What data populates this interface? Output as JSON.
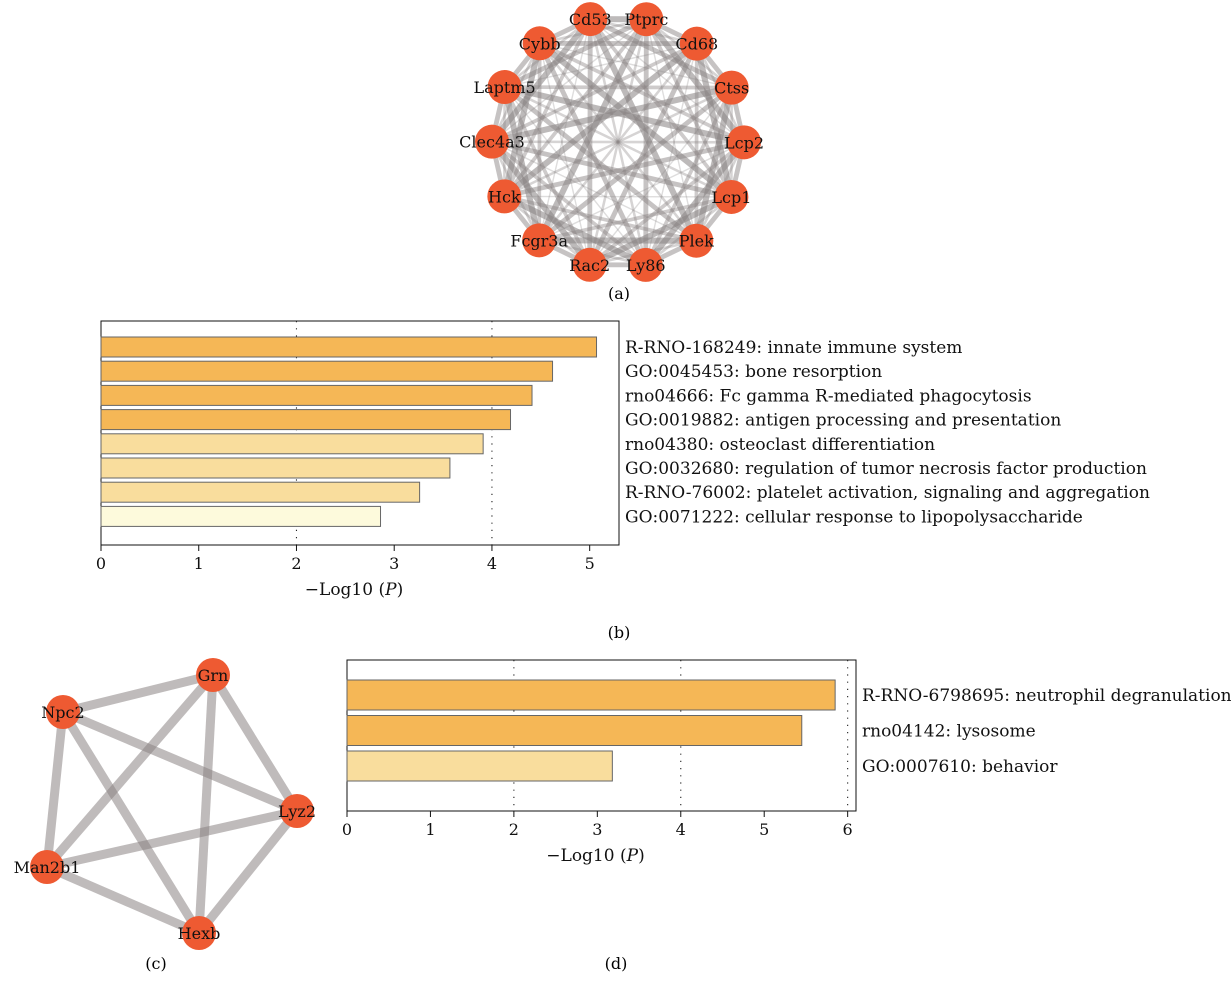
{
  "panels": {
    "a": {
      "label": "(a)"
    },
    "b": {
      "label": "(b)"
    },
    "c": {
      "label": "(c)"
    },
    "d": {
      "label": "(d)"
    }
  },
  "colors": {
    "node": "#ee5a32",
    "edge": "#8a8484",
    "bar_dark": "#f5b756",
    "bar_medium": "#f9dd9d",
    "bar_light": "#fdfadc",
    "bar_stroke": "#666666"
  },
  "chart_data": [
    {
      "panel": "a",
      "type": "network",
      "layout": "circle",
      "nodes": [
        "Ptprc",
        "Cd68",
        "Ctss",
        "Lcp2",
        "Lcp1",
        "Plek",
        "Ly86",
        "Rac2",
        "Fcgr3a",
        "Hck",
        "Clec4a3",
        "Laptm5",
        "Cybb",
        "Cd53"
      ],
      "edges": "dense (near-complete) interaction graph among all 14 genes"
    },
    {
      "panel": "b",
      "type": "bar",
      "orientation": "horizontal",
      "categories": [
        "R-RNO-168249: innate immune system",
        "GO:0045453: bone resorption",
        "rno04666: Fc gamma R-mediated phagocytosis",
        "GO:0019882: antigen processing and presentation",
        "rno04380: osteoclast differentiation",
        "GO:0032680: regulation of tumor necrosis factor production",
        "R-RNO-76002: platelet activation, signaling and aggregation",
        "GO:0071222: cellular response to lipopolysaccharide"
      ],
      "values": [
        5.07,
        4.62,
        4.41,
        4.19,
        3.91,
        3.57,
        3.26,
        2.86
      ],
      "shades": [
        "dark",
        "dark",
        "dark",
        "dark",
        "medium",
        "medium",
        "medium",
        "light"
      ],
      "xlabel_prefix": "−Log10 (",
      "xlabel_var": "P",
      "xlabel_suffix": ")",
      "xlim": [
        0,
        5.3
      ],
      "xticks": [
        "0",
        "1",
        "2",
        "3",
        "4",
        "5"
      ],
      "dotted_gridlines_at": [
        2,
        4
      ]
    },
    {
      "panel": "c",
      "type": "network",
      "layout": "pentagon",
      "nodes": [
        "Grn",
        "Lyz2",
        "Hexb",
        "Man2b1",
        "Npc2"
      ],
      "edges": [
        [
          "Grn",
          "Lyz2"
        ],
        [
          "Grn",
          "Hexb"
        ],
        [
          "Grn",
          "Man2b1"
        ],
        [
          "Grn",
          "Npc2"
        ],
        [
          "Lyz2",
          "Hexb"
        ],
        [
          "Lyz2",
          "Man2b1"
        ],
        [
          "Lyz2",
          "Npc2"
        ],
        [
          "Hexb",
          "Man2b1"
        ],
        [
          "Hexb",
          "Npc2"
        ],
        [
          "Man2b1",
          "Npc2"
        ]
      ]
    },
    {
      "panel": "d",
      "type": "bar",
      "orientation": "horizontal",
      "categories": [
        "R-RNO-6798695: neutrophil degranulation",
        "rno04142: lysosome",
        "GO:0007610: behavior"
      ],
      "values": [
        5.85,
        5.45,
        3.18
      ],
      "shades": [
        "dark",
        "dark",
        "medium"
      ],
      "xlabel_prefix": "−Log10 (",
      "xlabel_var": "P",
      "xlabel_suffix": ")",
      "xlim": [
        0,
        6.1
      ],
      "xticks": [
        "0",
        "1",
        "2",
        "3",
        "4",
        "5",
        "6"
      ],
      "dotted_gridlines_at": [
        2,
        4,
        6
      ]
    }
  ]
}
